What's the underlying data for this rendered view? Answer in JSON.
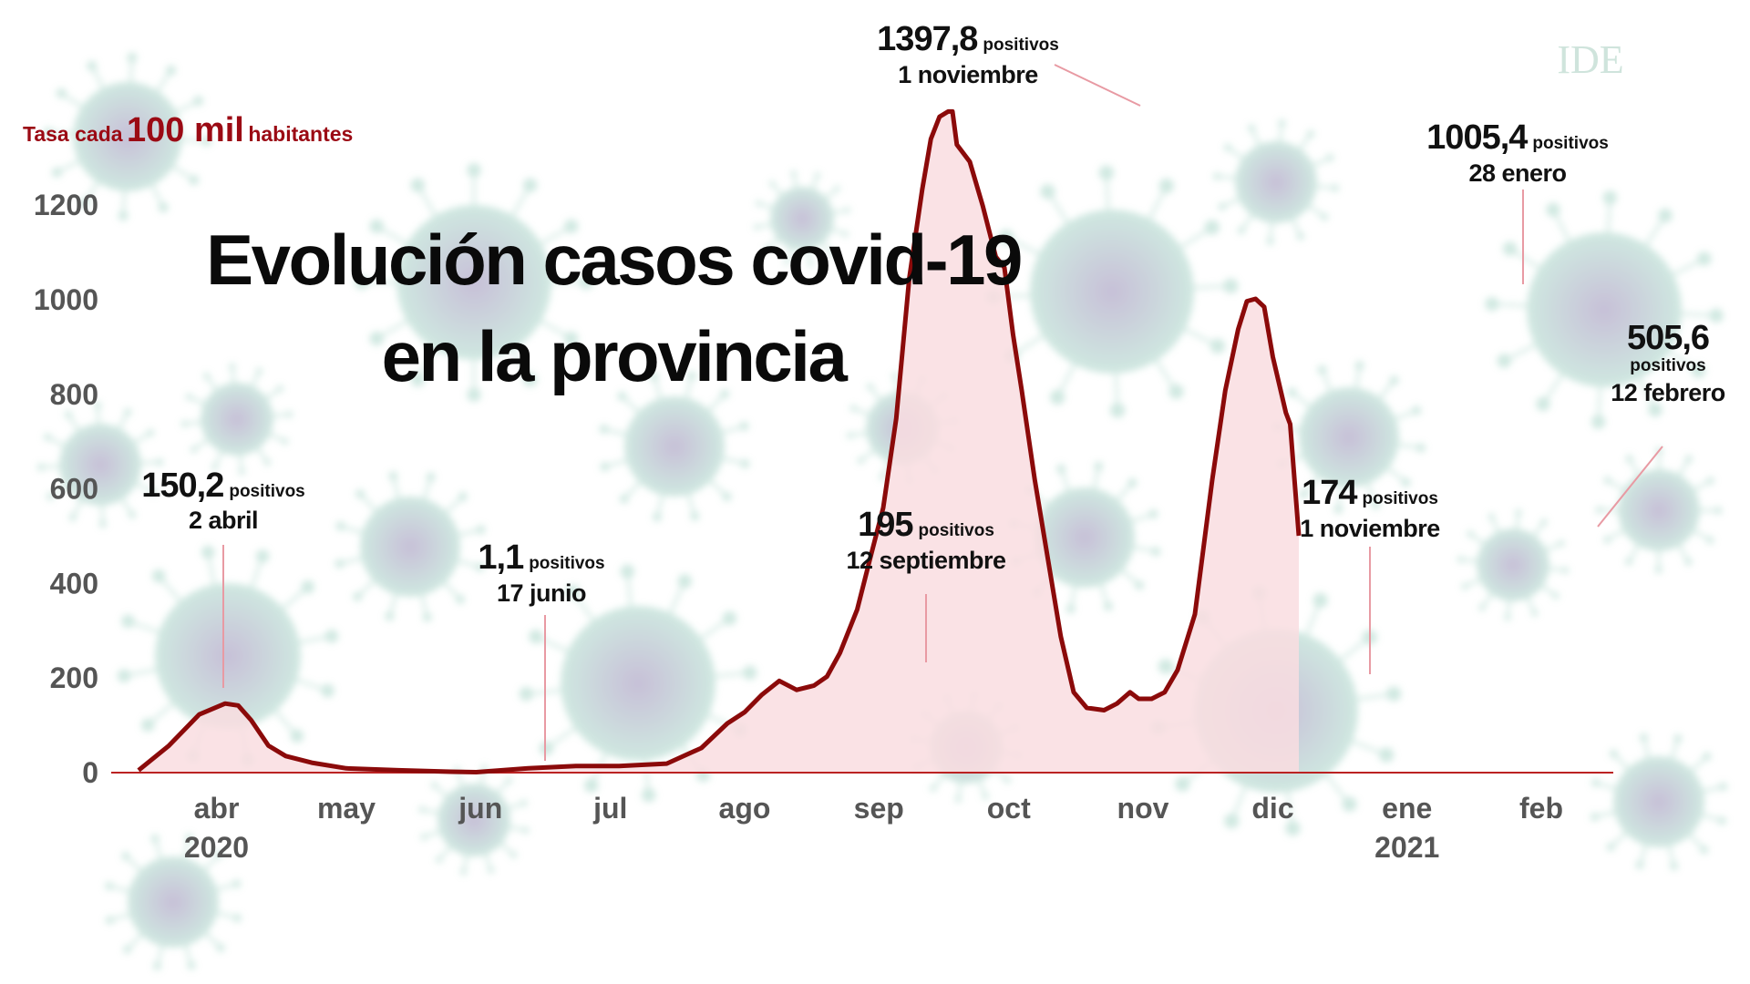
{
  "chart_data": {
    "type": "area",
    "title": "Evolución casos covid-19",
    "subtitle": "en la provincia",
    "ylabel_parts": {
      "prefix": "Tasa cada",
      "emph": "100 mil",
      "suffix": "habitantes"
    },
    "ylim": [
      0,
      1400
    ],
    "y_ticks": [
      "0",
      "200",
      "400",
      "600",
      "800",
      "1000",
      "1200"
    ],
    "x_origin": "2020-03-14",
    "x_unit": "days since x_origin",
    "months": [
      {
        "label": "abr",
        "day": 18,
        "year": "2020"
      },
      {
        "label": "may",
        "day": 48
      },
      {
        "label": "jun",
        "day": 79
      },
      {
        "label": "jul",
        "day": 109
      },
      {
        "label": "ago",
        "day": 140
      },
      {
        "label": "sep",
        "day": 171
      },
      {
        "label": "oct",
        "day": 201
      },
      {
        "label": "nov",
        "day": 232
      },
      {
        "label": "dic",
        "day": 262
      },
      {
        "label": "ene",
        "day": 293,
        "year": "2021"
      },
      {
        "label": "feb",
        "day": 324
      }
    ],
    "series": [
      {
        "name": "Tasa cada 100 mil habitantes",
        "color": "#8b0a0a",
        "fill": "#f9dde0",
        "points": [
          [
            0,
            5
          ],
          [
            7,
            57
          ],
          [
            14,
            123
          ],
          [
            20,
            146
          ],
          [
            23,
            142
          ],
          [
            26,
            111
          ],
          [
            30,
            57
          ],
          [
            34,
            35
          ],
          [
            40,
            21
          ],
          [
            48,
            9
          ],
          [
            60,
            5
          ],
          [
            72,
            2
          ],
          [
            78,
            1
          ],
          [
            90,
            9
          ],
          [
            101,
            14
          ],
          [
            111,
            14
          ],
          [
            122,
            19
          ],
          [
            130,
            52
          ],
          [
            136,
            104
          ],
          [
            140,
            128
          ],
          [
            144,
            165
          ],
          [
            148,
            194
          ],
          [
            152,
            175
          ],
          [
            156,
            184
          ],
          [
            159,
            203
          ],
          [
            162,
            253
          ],
          [
            166,
            345
          ],
          [
            169,
            454
          ],
          [
            172,
            560
          ],
          [
            175,
            749
          ],
          [
            178,
            1044
          ],
          [
            181,
            1233
          ],
          [
            183,
            1340
          ],
          [
            185,
            1387
          ],
          [
            187,
            1398
          ],
          [
            188,
            1398
          ],
          [
            189,
            1328
          ],
          [
            192,
            1292
          ],
          [
            195,
            1198
          ],
          [
            198,
            1091
          ],
          [
            200,
            1068
          ],
          [
            202,
            926
          ],
          [
            204,
            808
          ],
          [
            207,
            619
          ],
          [
            210,
            454
          ],
          [
            213,
            288
          ],
          [
            216,
            170
          ],
          [
            219,
            137
          ],
          [
            223,
            132
          ],
          [
            226,
            146
          ],
          [
            229,
            170
          ],
          [
            231,
            156
          ],
          [
            234,
            156
          ],
          [
            237,
            170
          ],
          [
            240,
            217
          ],
          [
            244,
            335
          ],
          [
            248,
            619
          ],
          [
            251,
            808
          ],
          [
            254,
            938
          ],
          [
            256,
            997
          ],
          [
            258,
            1002
          ],
          [
            260,
            985
          ],
          [
            262,
            879
          ],
          [
            265,
            761
          ],
          [
            266,
            737
          ],
          [
            268,
            501
          ]
        ]
      }
    ],
    "annotations": [
      {
        "value": "150,2",
        "unit": "positivos",
        "date": "2 abril"
      },
      {
        "value": "1,1",
        "unit": "positivos",
        "date": "17 junio"
      },
      {
        "value": "195",
        "unit": "positivos",
        "date": "12 septiembre"
      },
      {
        "value": "1397,8",
        "unit": "positivos",
        "date": "1 noviembre"
      },
      {
        "value": "174",
        "unit": "positivos",
        "date": "1 noviembre"
      },
      {
        "value": "1005,4",
        "unit": "positivos",
        "date": "28 enero"
      },
      {
        "value": "505,6",
        "unit": "positivos",
        "date": "12 febrero"
      }
    ],
    "grid": false,
    "legend": "none"
  },
  "logo": "IDE"
}
